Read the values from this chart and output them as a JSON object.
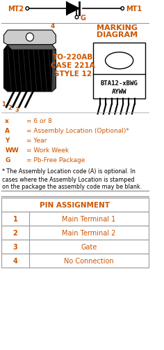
{
  "bg_color": "#ffffff",
  "orange": "#cc5500",
  "black": "#000000",
  "gray_line": "#999999",
  "marking_title_line1": "MARKING",
  "marking_title_line2": "DIAGRAM",
  "marking_code_line1": "BTA12-xBWG",
  "marking_code_line2": "AYWW",
  "package_label1": "TO-220AB",
  "package_label2": "CASE 221A",
  "package_label3": "STYLE 12",
  "legend_lines": [
    [
      "x",
      "= 6 or 8"
    ],
    [
      "A",
      "= Assembly Location (Optional)*"
    ],
    [
      "Y",
      "= Year"
    ],
    [
      "WW",
      "= Work Week"
    ],
    [
      "G",
      "= Pb-Free Package"
    ]
  ],
  "footnote_lines": [
    "* The Assembly Location code (A) is optional. In",
    "cases where the Assembly Location is stamped",
    "on the package the assembly code may be blank."
  ],
  "pin_assignment_header": "PIN ASSIGNMENT",
  "pin_rows": [
    [
      "1",
      "Main Terminal 1"
    ],
    [
      "2",
      "Main Terminal 2"
    ],
    [
      "3",
      "Gate"
    ],
    [
      "4",
      "No Connection"
    ]
  ],
  "mt2_label": "MT2",
  "mt1_label": "MT1",
  "g_label": "G"
}
